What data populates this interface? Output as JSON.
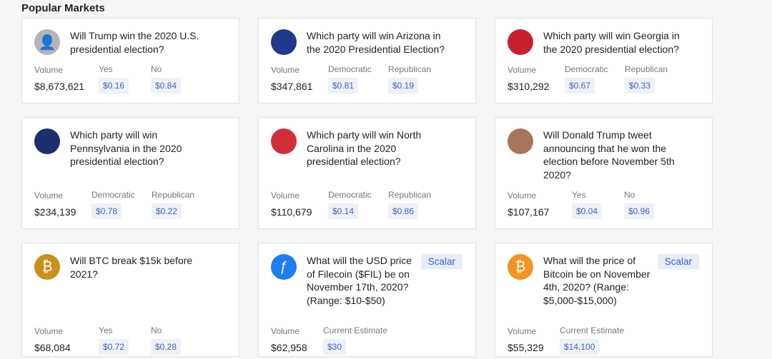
{
  "heading": "Popular Markets",
  "markets": [
    {
      "icon": "user-avatar-icon",
      "icon_bg": "#b5b5b5",
      "question": "Will Trump win the 2020 U.S. presidential election?",
      "volume_label": "Volume",
      "volume": "$8,673,621",
      "outcomes": [
        {
          "label": "Yes",
          "price": "$0.16"
        },
        {
          "label": "No",
          "price": "$0.84"
        }
      ]
    },
    {
      "icon": "arizona-flag-icon",
      "icon_bg": "#1f3a8a",
      "question": "Which party will win Arizona in the 2020 Presidential Election?",
      "volume_label": "Volume",
      "volume": "$347,861",
      "outcomes": [
        {
          "label": "Democratic",
          "price": "$0.81"
        },
        {
          "label": "Republican",
          "price": "$0.19"
        }
      ]
    },
    {
      "icon": "georgia-flag-icon",
      "icon_bg": "#c8202f",
      "question": "Which party will win Georgia in the 2020 presidential election?",
      "volume_label": "Volume",
      "volume": "$310,292",
      "outcomes": [
        {
          "label": "Democratic",
          "price": "$0.67"
        },
        {
          "label": "Republican",
          "price": "$0.33"
        }
      ]
    },
    {
      "icon": "pennsylvania-flag-icon",
      "icon_bg": "#1c2f6e",
      "question": "Which party will win Pennsylvania in the 2020 presidential election?",
      "volume_label": "Volume",
      "volume": "$234,139",
      "outcomes": [
        {
          "label": "Democratic",
          "price": "$0.78"
        },
        {
          "label": "Republican",
          "price": "$0.22"
        }
      ]
    },
    {
      "icon": "north-carolina-flag-icon",
      "icon_bg": "#d22f3a",
      "question": "Which party will win North Carolina in the 2020 presidential election?",
      "volume_label": "Volume",
      "volume": "$110,679",
      "outcomes": [
        {
          "label": "Democratic",
          "price": "$0.14"
        },
        {
          "label": "Republican",
          "price": "$0.86"
        }
      ]
    },
    {
      "icon": "trump-photo-icon",
      "icon_bg": "#a8745a",
      "question": "Will Donald Trump tweet announcing that he won the election before November 5th 2020?",
      "volume_label": "Volume",
      "volume": "$107,167",
      "outcomes": [
        {
          "label": "Yes",
          "price": "$0.04"
        },
        {
          "label": "No",
          "price": "$0.96"
        }
      ]
    },
    {
      "icon": "bitcoin-gold-icon",
      "icon_bg": "#c9901e",
      "question": "Will BTC break $15k before 2021?",
      "volume_label": "Volume",
      "volume": "$68,084",
      "outcomes": [
        {
          "label": "Yes",
          "price": "$0.72"
        },
        {
          "label": "No",
          "price": "$0.28"
        }
      ]
    },
    {
      "icon": "filecoin-icon",
      "icon_bg": "#1e7ef0",
      "question": "What will the USD price of Filecoin ($FIL) be on November 17th, 2020? (Range: $10-$50)",
      "badge": "Scalar",
      "volume_label": "Volume",
      "volume": "$62,958",
      "outcomes": [
        {
          "label": "Current Estimate",
          "price": "$30"
        }
      ]
    },
    {
      "icon": "bitcoin-icon",
      "icon_bg": "#f39321",
      "question": "What will the price of Bitcoin be on November 4th, 2020? (Range: $5,000-$15,000)",
      "badge": "Scalar",
      "volume_label": "Volume",
      "volume": "$55,329",
      "outcomes": [
        {
          "label": "Current Estimate",
          "price": "$14,100"
        }
      ]
    }
  ]
}
